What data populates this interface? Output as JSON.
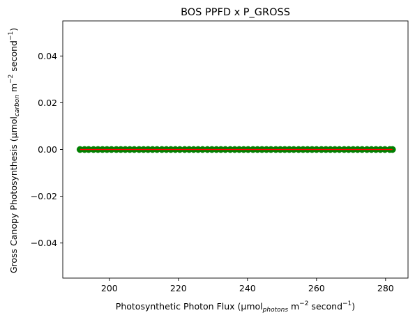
{
  "chart_data": {
    "type": "scatter",
    "title": "BOS PPFD x P_GROSS",
    "xlabel": {
      "prefix": "Photosynthetic Photon Flux (μmol",
      "subscript": "photons",
      "middle": " m",
      "exponent1": "−2",
      "suffix": " second",
      "exponent2": "−1",
      "end": ")"
    },
    "ylabel": {
      "prefix": "Gross Canopy Photosynthesis (μmol",
      "subscript": "carbon",
      "middle": " m",
      "exponent1": "−2",
      "suffix": " second",
      "exponent2": "−1",
      "end": ")"
    },
    "xlim": [
      186.5,
      286.5
    ],
    "ylim": [
      -0.055,
      0.055
    ],
    "xticks": [
      200,
      220,
      240,
      260,
      280
    ],
    "xtick_labels": [
      "200",
      "220",
      "240",
      "260",
      "280"
    ],
    "yticks": [
      -0.04,
      -0.02,
      0.0,
      0.02,
      0.04
    ],
    "ytick_labels": [
      "−0.04",
      "−0.02",
      "0.00",
      "0.02",
      "0.04"
    ],
    "grid": false,
    "series": [
      {
        "kind": "scatter",
        "color": "#008000",
        "x": [
          191.5,
          192.8,
          194.0,
          195.4,
          196.7,
          198.0,
          199.3,
          200.6,
          202.0,
          203.3,
          204.6,
          205.9,
          207.2,
          208.6,
          209.9,
          211.2,
          212.5,
          213.8,
          215.2,
          216.5,
          217.8,
          219.1,
          220.4,
          221.8,
          223.1,
          224.4,
          225.7,
          227.0,
          228.4,
          229.7,
          231.0,
          232.3,
          233.6,
          235.0,
          236.3,
          237.6,
          238.9,
          240.2,
          241.6,
          242.9,
          244.2,
          245.5,
          246.8,
          248.2,
          249.5,
          250.8,
          252.1,
          253.4,
          254.8,
          256.1,
          257.4,
          258.7,
          260.0,
          261.4,
          262.7,
          264.0,
          265.3,
          266.6,
          268.0,
          269.3,
          270.6,
          271.9,
          273.2,
          274.6,
          275.9,
          277.2,
          278.5,
          279.8,
          281.2,
          282.0
        ],
        "y_constant": 0.0
      },
      {
        "kind": "line",
        "color": "#ff0000",
        "x": [
          191.5,
          282.0
        ],
        "y": [
          0.0,
          0.0
        ]
      }
    ]
  }
}
